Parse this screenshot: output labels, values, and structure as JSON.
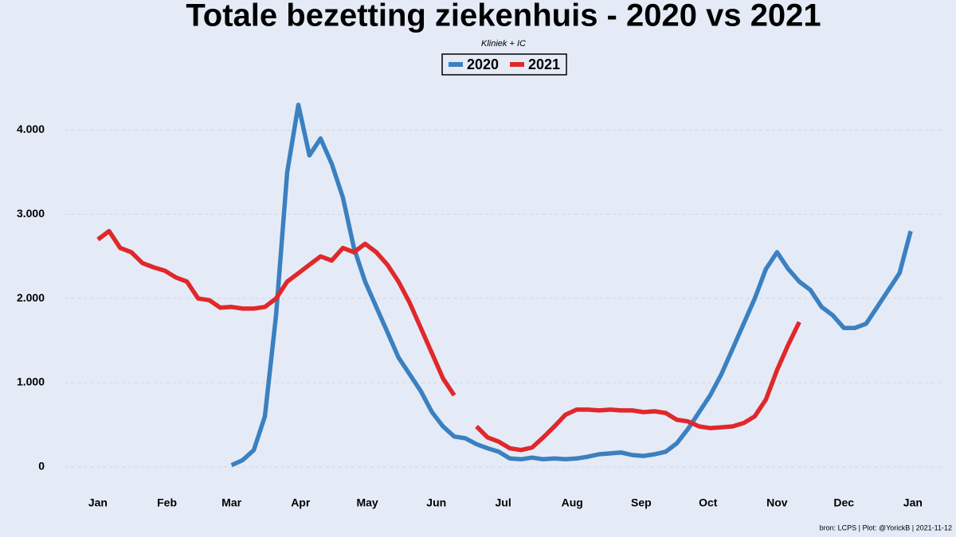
{
  "chart_data": {
    "type": "line",
    "title": "Totale bezetting ziekenhuis - 2020 vs 2021",
    "subtitle": "Kliniek + IC",
    "source": "bron: LCPS  | Plot: @YorickB |  2021-11-12",
    "x": [
      0,
      5,
      10,
      15,
      20,
      25,
      30,
      35,
      40,
      45,
      50,
      55,
      60,
      65,
      70,
      75,
      80,
      85,
      90,
      95,
      100,
      105,
      110,
      115,
      120,
      125,
      130,
      135,
      140,
      145,
      150,
      155,
      160,
      165,
      170,
      175,
      180,
      185,
      190,
      195,
      200,
      205,
      210,
      215,
      220,
      225,
      230,
      235,
      240,
      245,
      250,
      255,
      260,
      265,
      270,
      275,
      280,
      285,
      290,
      295,
      300,
      305,
      310,
      315,
      320,
      325,
      330,
      335,
      340,
      345,
      350,
      355,
      360,
      365
    ],
    "xlim": [
      -15,
      380
    ],
    "xticks": [
      {
        "value": 0,
        "label": "Jan"
      },
      {
        "value": 31,
        "label": "Feb"
      },
      {
        "value": 60,
        "label": "Mar"
      },
      {
        "value": 91,
        "label": "Apr"
      },
      {
        "value": 121,
        "label": "May"
      },
      {
        "value": 152,
        "label": "Jun"
      },
      {
        "value": 182,
        "label": "Jul"
      },
      {
        "value": 213,
        "label": "Aug"
      },
      {
        "value": 244,
        "label": "Sep"
      },
      {
        "value": 274,
        "label": "Oct"
      },
      {
        "value": 305,
        "label": "Nov"
      },
      {
        "value": 335,
        "label": "Dec"
      },
      {
        "value": 366,
        "label": "Jan"
      }
    ],
    "ylim": [
      -200,
      4600
    ],
    "yticks": [
      0,
      {
        "value": 1000,
        "label": "1.000"
      },
      {
        "value": 2000,
        "label": "2.000"
      },
      {
        "value": 3000,
        "label": "3.000"
      },
      {
        "value": 4000,
        "label": "4.000"
      }
    ],
    "grid": true,
    "series": [
      {
        "name": "2020",
        "color": "#3b80c0",
        "values": [
          null,
          null,
          null,
          null,
          null,
          null,
          null,
          null,
          null,
          null,
          null,
          null,
          20,
          80,
          200,
          600,
          1800,
          3500,
          4300,
          3700,
          3900,
          3600,
          3200,
          2600,
          2200,
          1900,
          1600,
          1300,
          1100,
          900,
          650,
          480,
          360,
          340,
          270,
          220,
          180,
          100,
          90,
          110,
          90,
          100,
          90,
          100,
          120,
          150,
          160,
          170,
          140,
          130,
          150,
          180,
          280,
          450,
          650,
          850,
          1100,
          1400,
          1700,
          2000,
          2350,
          2550,
          2350,
          2200,
          2100,
          1900,
          1800,
          1650,
          1650,
          1700,
          1900,
          2100,
          2300,
          2800
        ]
      },
      {
        "name": "2021",
        "color": "#e0282b",
        "values": [
          2700,
          2800,
          2600,
          2550,
          2420,
          2370,
          2330,
          2250,
          2200,
          2000,
          1980,
          1890,
          1900,
          1880,
          1880,
          1900,
          2000,
          2200,
          2300,
          2400,
          2500,
          2450,
          2600,
          2550,
          2650,
          2550,
          2400,
          2200,
          1950,
          1650,
          1350,
          1050,
          850,
          null,
          480,
          350,
          300,
          220,
          200,
          230,
          350,
          480,
          620,
          680,
          680,
          670,
          680,
          670,
          670,
          650,
          660,
          640,
          560,
          540,
          480,
          460,
          470,
          480,
          520,
          600,
          800,
          1150,
          1450,
          1720,
          null,
          null,
          null,
          null,
          null,
          null,
          null,
          null,
          null,
          null
        ]
      }
    ]
  }
}
